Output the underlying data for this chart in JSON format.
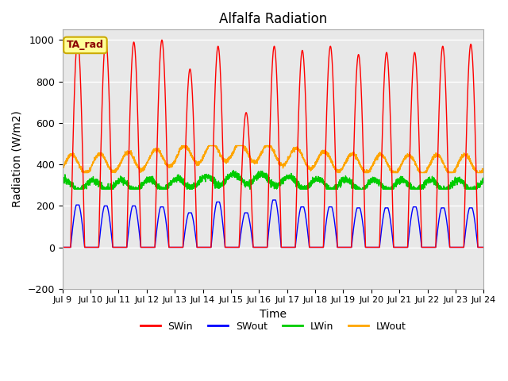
{
  "title": "Alfalfa Radiation",
  "xlabel": "Time",
  "ylabel": "Radiation (W/m2)",
  "ylim": [
    -200,
    1050
  ],
  "yticks": [
    -200,
    0,
    200,
    400,
    600,
    800,
    1000
  ],
  "colors": {
    "SWin": "red",
    "SWout": "blue",
    "LWin": "#00cc00",
    "LWout": "orange"
  },
  "legend_labels": [
    "SWin",
    "SWout",
    "LWin",
    "LWout"
  ],
  "annotation_text": "TA_rad",
  "annotation_bg": "#ffff99",
  "annotation_border": "#ccaa00",
  "background_color": "#e8e8e8",
  "grid_color": "white",
  "n_days": 15,
  "start_day": 9,
  "title_fontsize": 12,
  "SWin_peaks": [
    1000,
    1000,
    990,
    1000,
    860,
    970,
    650,
    970,
    950,
    970,
    930,
    940,
    940,
    970,
    980
  ],
  "SWout_peaks": [
    215,
    210,
    210,
    205,
    175,
    230,
    175,
    240,
    205,
    205,
    200,
    200,
    205,
    200,
    200
  ],
  "LWin_base": 300,
  "LWout_base": 400
}
